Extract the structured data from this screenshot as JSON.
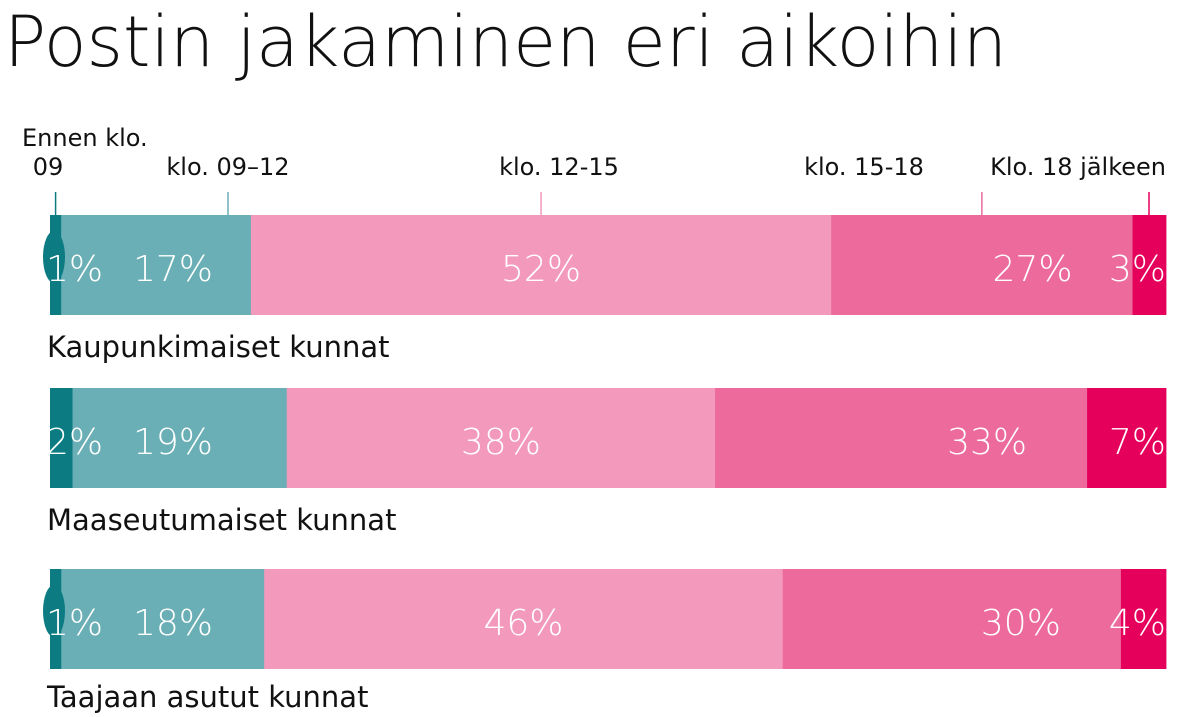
{
  "chart_data": {
    "type": "bar",
    "orientation": "horizontal",
    "stacked": true,
    "title": "Postin jakaminen eri aikoihin",
    "legend": [
      {
        "label_lines": [
          "Ennen klo.",
          "09"
        ],
        "color": "#0c7c82"
      },
      {
        "label_lines": [
          "klo. 09–12"
        ],
        "color": "#6aafb6"
      },
      {
        "label_lines": [
          "klo. 12-15"
        ],
        "color": "#f299bc"
      },
      {
        "label_lines": [
          "klo. 15-18"
        ],
        "color": "#ec6a9c"
      },
      {
        "label_lines": [
          "Klo. 18 jälkeen"
        ],
        "color": "#e5005c"
      }
    ],
    "rows": [
      {
        "label": "Kaupunkimaiset kunnat",
        "values": [
          1,
          17,
          52,
          27,
          3
        ],
        "labels": [
          "1%",
          "17%",
          "52%",
          "27%",
          "3%"
        ]
      },
      {
        "label": "Maaseutumaiset kunnat",
        "values": [
          2,
          19,
          38,
          33,
          7
        ],
        "labels": [
          "2%",
          "19%",
          "38%",
          "33%",
          "7%"
        ]
      },
      {
        "label": "Taajaan asutut kunnat",
        "values": [
          1,
          18,
          46,
          30,
          4
        ],
        "labels": [
          "1%",
          "18%",
          "46%",
          "30%",
          "4%"
        ]
      }
    ]
  }
}
